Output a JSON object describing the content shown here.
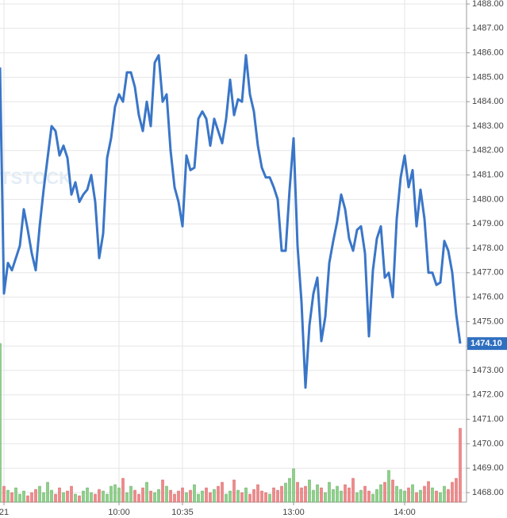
{
  "chart_data": {
    "type": "line",
    "watermark": "TSTOCK",
    "xticks": [
      {
        "value": 1,
        "label": "21"
      },
      {
        "value": 30,
        "label": "10:00"
      },
      {
        "value": 46,
        "label": "10:35"
      },
      {
        "value": 74,
        "label": "13:00"
      },
      {
        "value": 102,
        "label": "14:00"
      }
    ],
    "ylim": [
      1468,
      1488
    ],
    "yticks": [
      {
        "value": 1468,
        "label": "1468.00"
      },
      {
        "value": 1469,
        "label": "1469.00"
      },
      {
        "value": 1470,
        "label": "1470.00"
      },
      {
        "value": 1471,
        "label": "1471.00"
      },
      {
        "value": 1472,
        "label": "1472.00"
      },
      {
        "value": 1473,
        "label": "1473.00"
      },
      {
        "value": 1474,
        "label": "1474.00"
      },
      {
        "value": 1475,
        "label": "1475.00"
      },
      {
        "value": 1476,
        "label": "1476.00"
      },
      {
        "value": 1477,
        "label": "1477.00"
      },
      {
        "value": 1478,
        "label": "1478.00"
      },
      {
        "value": 1479,
        "label": "1479.00"
      },
      {
        "value": 1480,
        "label": "1480.00"
      },
      {
        "value": 1481,
        "label": "1481.00"
      },
      {
        "value": 1482,
        "label": "1482.00"
      },
      {
        "value": 1483,
        "label": "1483.00"
      },
      {
        "value": 1484,
        "label": "1484.00"
      },
      {
        "value": 1485,
        "label": "1485.00"
      },
      {
        "value": 1486,
        "label": "1486.00"
      },
      {
        "value": 1487,
        "label": "1487.00"
      },
      {
        "value": 1488,
        "label": "1488.00"
      }
    ],
    "grid": true,
    "series": [
      {
        "color": "#3a76c8",
        "values": [
          1485.4,
          1476.15,
          1477.4,
          1477.1,
          1477.6,
          1478.1,
          1479.6,
          1478.75,
          1477.8,
          1477.1,
          1478.9,
          1480.4,
          1481.7,
          1483.0,
          1482.8,
          1481.8,
          1482.2,
          1481.7,
          1480.2,
          1480.7,
          1479.9,
          1480.2,
          1480.4,
          1481.0,
          1479.9,
          1477.6,
          1478.6,
          1481.7,
          1482.5,
          1483.8,
          1484.3,
          1484.0,
          1485.2,
          1485.2,
          1484.6,
          1483.45,
          1482.8,
          1484.0,
          1483.0,
          1485.6,
          1485.9,
          1484.0,
          1484.3,
          1482.0,
          1480.5,
          1479.9,
          1478.9,
          1481.8,
          1481.2,
          1481.3,
          1483.3,
          1483.6,
          1483.3,
          1482.2,
          1483.3,
          1482.8,
          1482.3,
          1483.3,
          1484.9,
          1483.45,
          1484.1,
          1484.0,
          1485.9,
          1484.3,
          1483.6,
          1482.2,
          1481.3,
          1480.9,
          1480.9,
          1480.5,
          1480.0,
          1477.9,
          1477.9,
          1480.4,
          1482.5,
          1478.1,
          1475.8,
          1472.3,
          1474.85,
          1476.15,
          1476.8,
          1474.2,
          1475.2,
          1477.4,
          1478.3,
          1479.1,
          1480.2,
          1479.6,
          1478.4,
          1477.9,
          1478.75,
          1478.9,
          1477.8,
          1474.4,
          1477.1,
          1478.4,
          1478.9,
          1476.8,
          1477.0,
          1476.0,
          1479.2,
          1480.9,
          1481.8,
          1480.5,
          1481.2,
          1478.9,
          1480.4,
          1479.2,
          1477.0,
          1477.0,
          1476.5,
          1476.6,
          1478.3,
          1477.9,
          1477.0,
          1475.3,
          1474.1
        ]
      }
    ],
    "last_price": {
      "value": 1474.1,
      "label": "1474.10",
      "color": "#2f6fc0"
    },
    "volume": {
      "vlim": [
        0,
        200
      ],
      "up_color": "#8fd08a",
      "down_color": "#f0898a",
      "values": [
        200,
        20,
        15,
        12,
        18,
        10,
        14,
        8,
        12,
        16,
        20,
        12,
        25,
        15,
        10,
        18,
        12,
        14,
        20,
        10,
        8,
        14,
        18,
        12,
        10,
        16,
        14,
        10,
        20,
        22,
        18,
        30,
        12,
        20,
        15,
        10,
        18,
        25,
        14,
        12,
        16,
        28,
        20,
        15,
        10,
        14,
        18,
        12,
        15,
        22,
        10,
        14,
        18,
        12,
        16,
        20,
        25,
        10,
        14,
        28,
        15,
        12,
        18,
        10,
        16,
        22,
        14,
        12,
        10,
        18,
        15,
        20,
        24,
        30,
        42,
        25,
        18,
        20,
        28,
        15,
        22,
        18,
        12,
        25,
        16,
        20,
        14,
        22,
        18,
        30,
        12,
        15,
        20,
        14,
        10,
        16,
        22,
        25,
        40,
        28,
        20,
        16,
        14,
        18,
        22,
        12,
        15,
        20,
        26,
        18,
        14,
        12,
        20,
        16,
        25,
        30,
        93
      ]
    }
  }
}
